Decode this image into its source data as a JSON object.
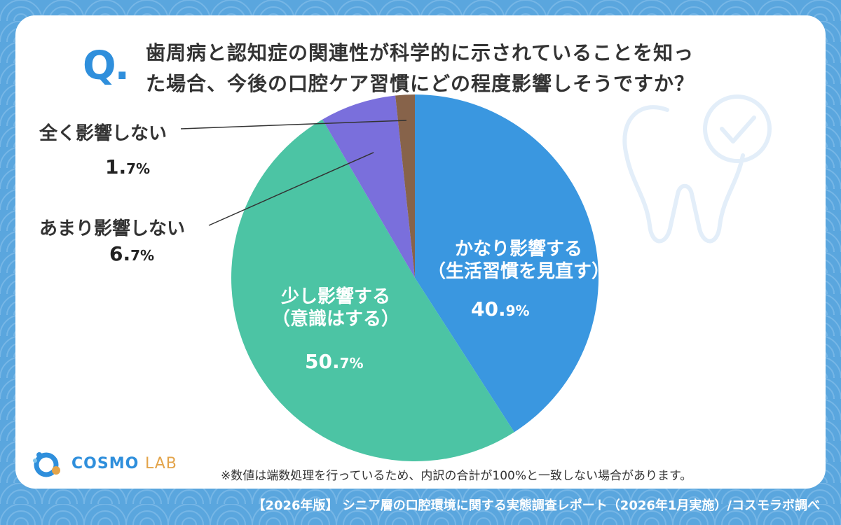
{
  "question": {
    "mark": "Q.",
    "line1": "歯周病と認知症の関連性が科学的に示されていることを知っ",
    "line2": "た場合、今後の口腔ケア習慣にどの程度影響しそうですか？"
  },
  "chart_data": {
    "type": "pie",
    "title": "歯周病と認知症の関連性が科学的に示されていることを知った場合、今後の口腔ケア習慣にどの程度影響しそうですか？",
    "slices": [
      {
        "label": "かなり影響する（生活習慣を見直す）",
        "value": 40.9,
        "color": "#3a97e0"
      },
      {
        "label": "少し影響する（意識はする）",
        "value": 50.7,
        "color": "#4cc4a4"
      },
      {
        "label": "あまり影響しない",
        "value": 6.7,
        "color": "#7a6fdc"
      },
      {
        "label": "全く影響しない",
        "value": 1.7,
        "color": "#87634a"
      }
    ],
    "start": "12 o'clock, clockwise"
  },
  "labels": {
    "slice0_line1": "かなり影響する",
    "slice0_line2": "（生活習慣を見直す）",
    "slice0_num": "40.",
    "slice0_dec": "9%",
    "slice1_line1": "少し影響する",
    "slice1_line2": "（意識はする）",
    "slice1_num": "50.",
    "slice1_dec": "7%",
    "slice2_name": "あまり影響しない",
    "slice2_num": "6.",
    "slice2_dec": "7%",
    "slice3_name": "全く影響しない",
    "slice3_num": "1.",
    "slice3_dec": "7%"
  },
  "logo": {
    "name_main": "COSMO",
    "name_sub": "LAB"
  },
  "note": "※数値は端数処理を行っているため、内訳の合計が100%と一致しない場合があります。",
  "footer": "【2026年版】 シニア層の口腔環境に関する実態調査レポート（2026年1月実施）/コスモラボ調べ",
  "colors": {
    "background": "#5aa6de",
    "accent": "#2f8fdc"
  },
  "icons": {
    "decoration": "tooth-check-icon",
    "logo": "cosmo-lab-logo-icon"
  }
}
